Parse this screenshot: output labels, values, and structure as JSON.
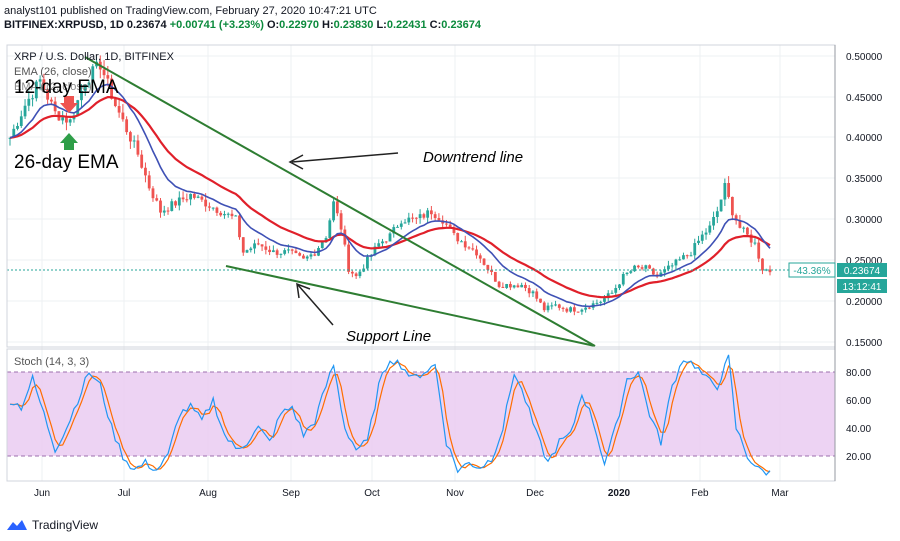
{
  "header": {
    "line1": "analyst101 published on TradingView.com, February 27, 2020 10:47:21 UTC",
    "symbol": "BITFINEX:XRPUSD, 1D",
    "price": "0.23674",
    "change": "+0.00741 (+3.23%)",
    "open_label": "O:",
    "open": "0.22970",
    "high_label": "H:",
    "high": "0.23830",
    "low_label": "L:",
    "low": "0.22431",
    "close_label": "C:",
    "close": "0.23674"
  },
  "legend": {
    "title": "XRP / U.S. Dollar, 1D, BITFINEX",
    "ema_line": "EMA (26, close)",
    "ema_line2": "EMA (12, close)"
  },
  "annotations": {
    "ema12": "12-day EMA",
    "ema26": "26-day EMA",
    "downtrend": "Downtrend line",
    "support": "Support Line"
  },
  "price_badge": {
    "change_pct": "-43.36%",
    "price": "0.23674",
    "countdown": "13:12:41"
  },
  "stoch_label": "Stoch (14, 3, 3)",
  "footer_brand": "TradingView",
  "colors": {
    "up": "#26a69a",
    "down": "#ef5350",
    "ema12": "#3f51b5",
    "ema26": "#e0202a",
    "trend": "#2e7d32",
    "stoch_fill": "#e1bee7",
    "stoch_k": "#2196f3",
    "stoch_d": "#ff6d00"
  },
  "chart_data": {
    "type": "candlestick",
    "y_ticks": [
      "0.50000",
      "0.45000",
      "0.40000",
      "0.35000",
      "0.30000",
      "0.25000",
      "0.20000",
      "0.15000"
    ],
    "ylim": [
      0.145,
      0.51
    ],
    "x_ticks": [
      "Jun",
      "Jul",
      "Aug",
      "Sep",
      "Oct",
      "Nov",
      "Dec",
      "2020",
      "Feb",
      "Mar"
    ],
    "stoch_ticks": [
      "80.00",
      "60.00",
      "40.00",
      "20.00"
    ],
    "stoch_bands": [
      20,
      80
    ],
    "price_path": [
      [
        0,
        0.4
      ],
      [
        4,
        0.44
      ],
      [
        8,
        0.47
      ],
      [
        12,
        0.43
      ],
      [
        16,
        0.42
      ],
      [
        20,
        0.47
      ],
      [
        24,
        0.49
      ],
      [
        28,
        0.44
      ],
      [
        31,
        0.41
      ],
      [
        34,
        0.38
      ],
      [
        37,
        0.34
      ],
      [
        40,
        0.31
      ],
      [
        44,
        0.32
      ],
      [
        48,
        0.33
      ],
      [
        52,
        0.32
      ],
      [
        56,
        0.31
      ],
      [
        60,
        0.3
      ],
      [
        62,
        0.26
      ],
      [
        66,
        0.27
      ],
      [
        70,
        0.26
      ],
      [
        74,
        0.26
      ],
      [
        78,
        0.25
      ],
      [
        81,
        0.26
      ],
      [
        84,
        0.28
      ],
      [
        86,
        0.32
      ],
      [
        88,
        0.29
      ],
      [
        90,
        0.24
      ],
      [
        92,
        0.23
      ],
      [
        95,
        0.25
      ],
      [
        98,
        0.27
      ],
      [
        101,
        0.28
      ],
      [
        104,
        0.3
      ],
      [
        108,
        0.3
      ],
      [
        112,
        0.31
      ],
      [
        115,
        0.3
      ],
      [
        118,
        0.28
      ],
      [
        121,
        0.27
      ],
      [
        124,
        0.26
      ],
      [
        127,
        0.24
      ],
      [
        130,
        0.22
      ],
      [
        133,
        0.22
      ],
      [
        136,
        0.22
      ],
      [
        139,
        0.21
      ],
      [
        142,
        0.19
      ],
      [
        145,
        0.195
      ],
      [
        148,
        0.19
      ],
      [
        151,
        0.19
      ],
      [
        154,
        0.195
      ],
      [
        157,
        0.2
      ],
      [
        160,
        0.21
      ],
      [
        163,
        0.23
      ],
      [
        166,
        0.24
      ],
      [
        169,
        0.24
      ],
      [
        172,
        0.23
      ],
      [
        175,
        0.24
      ],
      [
        178,
        0.25
      ],
      [
        181,
        0.26
      ],
      [
        184,
        0.28
      ],
      [
        186,
        0.29
      ],
      [
        188,
        0.31
      ],
      [
        190,
        0.34
      ],
      [
        192,
        0.31
      ],
      [
        194,
        0.29
      ],
      [
        196,
        0.28
      ],
      [
        198,
        0.27
      ],
      [
        200,
        0.24
      ],
      [
        202,
        0.237
      ]
    ],
    "stoch_path": [
      [
        0,
        60
      ],
      [
        3,
        55
      ],
      [
        6,
        75
      ],
      [
        9,
        50
      ],
      [
        12,
        25
      ],
      [
        15,
        40
      ],
      [
        18,
        60
      ],
      [
        21,
        80
      ],
      [
        24,
        70
      ],
      [
        27,
        40
      ],
      [
        30,
        20
      ],
      [
        33,
        10
      ],
      [
        36,
        15
      ],
      [
        39,
        10
      ],
      [
        42,
        20
      ],
      [
        45,
        50
      ],
      [
        48,
        55
      ],
      [
        51,
        45
      ],
      [
        54,
        60
      ],
      [
        57,
        35
      ],
      [
        60,
        25
      ],
      [
        63,
        30
      ],
      [
        66,
        40
      ],
      [
        69,
        30
      ],
      [
        72,
        50
      ],
      [
        75,
        55
      ],
      [
        78,
        35
      ],
      [
        81,
        45
      ],
      [
        84,
        70
      ],
      [
        86,
        85
      ],
      [
        89,
        40
      ],
      [
        92,
        25
      ],
      [
        95,
        30
      ],
      [
        98,
        70
      ],
      [
        101,
        90
      ],
      [
        104,
        85
      ],
      [
        107,
        75
      ],
      [
        110,
        80
      ],
      [
        113,
        85
      ],
      [
        116,
        30
      ],
      [
        119,
        10
      ],
      [
        122,
        15
      ],
      [
        125,
        12
      ],
      [
        128,
        18
      ],
      [
        131,
        40
      ],
      [
        134,
        80
      ],
      [
        137,
        60
      ],
      [
        140,
        35
      ],
      [
        143,
        15
      ],
      [
        146,
        30
      ],
      [
        149,
        35
      ],
      [
        152,
        65
      ],
      [
        155,
        45
      ],
      [
        158,
        15
      ],
      [
        161,
        40
      ],
      [
        164,
        75
      ],
      [
        167,
        80
      ],
      [
        170,
        50
      ],
      [
        173,
        30
      ],
      [
        176,
        70
      ],
      [
        179,
        90
      ],
      [
        182,
        85
      ],
      [
        185,
        75
      ],
      [
        188,
        70
      ],
      [
        191,
        90
      ],
      [
        193,
        40
      ],
      [
        196,
        20
      ],
      [
        199,
        10
      ],
      [
        202,
        8
      ]
    ]
  }
}
